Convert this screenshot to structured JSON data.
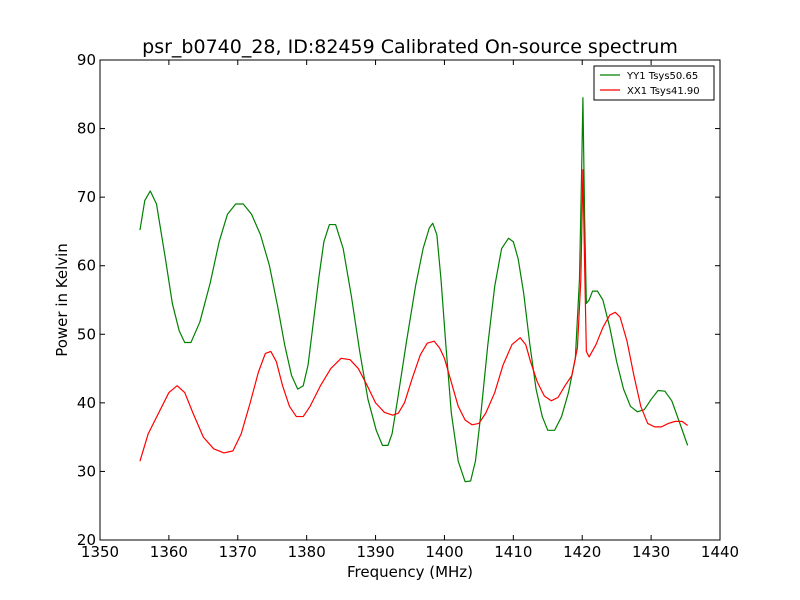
{
  "chart_data": {
    "type": "line",
    "title": "psr_b0740_28, ID:82459 Calibrated On-source spectrum",
    "xlabel": "Frequency (MHz)",
    "ylabel": "Power in Kelvin",
    "xlim": [
      1350,
      1440
    ],
    "ylim": [
      20,
      90
    ],
    "xticks": [
      1350,
      1360,
      1370,
      1380,
      1390,
      1400,
      1410,
      1420,
      1430,
      1440
    ],
    "yticks": [
      20,
      30,
      40,
      50,
      60,
      70,
      80,
      90
    ],
    "grid": false,
    "legend_position": "top-right",
    "series": [
      {
        "name": "YY1 Tsys50.65",
        "color": "#008000",
        "x": [
          1355.8,
          1356.5,
          1357.3,
          1358.2,
          1359.5,
          1360.5,
          1361.5,
          1362.3,
          1363.2,
          1364.5,
          1366.0,
          1367.3,
          1368.5,
          1369.7,
          1370.8,
          1372.0,
          1373.3,
          1374.6,
          1375.8,
          1376.8,
          1377.8,
          1378.7,
          1379.5,
          1380.2,
          1381.0,
          1381.8,
          1382.5,
          1383.3,
          1384.2,
          1385.3,
          1386.5,
          1387.7,
          1388.9,
          1390.1,
          1391.0,
          1391.8,
          1392.4,
          1393.2,
          1394.5,
          1395.8,
          1396.9,
          1397.8,
          1398.3,
          1398.9,
          1399.5,
          1400.2,
          1401.0,
          1402.0,
          1403.0,
          1403.8,
          1404.5,
          1405.3,
          1406.3,
          1407.3,
          1408.3,
          1409.3,
          1410.0,
          1410.7,
          1411.5,
          1412.4,
          1413.3,
          1414.2,
          1415.0,
          1416.0,
          1417.0,
          1418.0,
          1419.0,
          1419.6,
          1419.9,
          1420.1,
          1420.35,
          1420.6,
          1421.0,
          1421.5,
          1422.2,
          1423.0,
          1424.0,
          1425.0,
          1426.0,
          1427.0,
          1428.0,
          1429.0,
          1430.0,
          1431.0,
          1432.0,
          1433.0,
          1434.0,
          1435.3
        ],
        "y": [
          65.2,
          69.5,
          70.9,
          69.0,
          61.0,
          54.5,
          50.5,
          48.8,
          48.8,
          51.8,
          57.5,
          63.5,
          67.5,
          69.0,
          69.0,
          67.5,
          64.5,
          60.0,
          54.0,
          48.5,
          44.0,
          42.0,
          42.5,
          45.5,
          52.0,
          58.5,
          63.5,
          66.0,
          66.0,
          62.5,
          55.5,
          47.5,
          40.5,
          36.0,
          33.8,
          33.8,
          35.5,
          40.5,
          49.0,
          57.0,
          62.5,
          65.5,
          66.2,
          64.5,
          58.0,
          48.5,
          38.5,
          31.5,
          28.5,
          28.6,
          31.5,
          38.5,
          48.5,
          57.0,
          62.5,
          64.0,
          63.5,
          61.0,
          56.0,
          48.5,
          42.0,
          38.0,
          36.0,
          36.0,
          38.0,
          41.5,
          46.5,
          58.0,
          73.0,
          84.5,
          67.0,
          54.5,
          55.0,
          56.3,
          56.3,
          55.0,
          51.0,
          46.0,
          42.0,
          39.5,
          38.7,
          39.0,
          40.5,
          41.8,
          41.7,
          40.3,
          37.5,
          33.8
        ]
      },
      {
        "name": "XX1 Tsys41.90",
        "color": "#ff0000",
        "x": [
          1355.8,
          1357.0,
          1358.5,
          1360.0,
          1361.2,
          1362.3,
          1363.5,
          1365.0,
          1366.5,
          1368.0,
          1369.3,
          1370.5,
          1371.8,
          1373.0,
          1374.0,
          1374.8,
          1375.6,
          1376.5,
          1377.5,
          1378.5,
          1379.5,
          1380.5,
          1382.0,
          1383.5,
          1385.0,
          1386.3,
          1387.5,
          1388.8,
          1390.0,
          1391.3,
          1392.5,
          1393.3,
          1394.2,
          1395.3,
          1396.5,
          1397.5,
          1398.5,
          1399.3,
          1400.0,
          1401.0,
          1402.0,
          1403.0,
          1404.0,
          1405.0,
          1406.0,
          1407.3,
          1408.5,
          1409.8,
          1411.0,
          1411.8,
          1412.5,
          1413.5,
          1414.5,
          1415.5,
          1416.5,
          1417.5,
          1418.5,
          1419.3,
          1419.8,
          1420.1,
          1420.35,
          1420.6,
          1421.0,
          1422.0,
          1423.0,
          1424.0,
          1424.8,
          1425.5,
          1426.5,
          1427.5,
          1428.5,
          1429.5,
          1430.5,
          1431.5,
          1432.5,
          1433.5,
          1434.5,
          1435.3
        ],
        "y": [
          31.5,
          35.5,
          38.5,
          41.5,
          42.5,
          41.5,
          38.5,
          35.0,
          33.3,
          32.7,
          33.0,
          35.5,
          40.0,
          44.5,
          47.2,
          47.5,
          46.0,
          42.5,
          39.5,
          38.0,
          38.0,
          39.5,
          42.5,
          45.0,
          46.5,
          46.3,
          45.0,
          42.5,
          40.0,
          38.6,
          38.2,
          38.5,
          40.0,
          43.5,
          47.0,
          48.7,
          49.0,
          48.0,
          46.5,
          43.0,
          39.5,
          37.5,
          36.8,
          37.0,
          38.5,
          41.5,
          45.5,
          48.5,
          49.5,
          48.5,
          46.0,
          43.0,
          41.0,
          40.3,
          40.8,
          42.5,
          44.0,
          48.0,
          58.0,
          74.0,
          60.0,
          47.5,
          46.7,
          48.5,
          51.0,
          52.8,
          53.2,
          52.5,
          49.0,
          44.0,
          39.5,
          37.0,
          36.5,
          36.5,
          37.0,
          37.3,
          37.3,
          36.7
        ]
      }
    ]
  }
}
